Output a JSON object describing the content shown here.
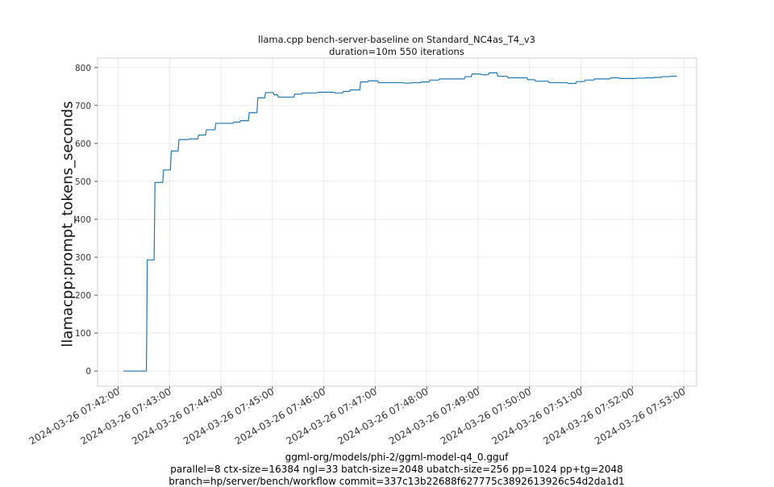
{
  "figure": {
    "title_line1": "llama.cpp bench-server-baseline on Standard_NC4as_T4_v3",
    "title_line2": "duration=10m 550 iterations",
    "footer_line1": "ggml-org/models/phi-2/ggml-model-q4_0.gguf",
    "footer_line2": "parallel=8 ctx-size=16384 ngl=33 batch-size=2048 ubatch-size=256 pp=1024 pp+tg=2048",
    "footer_line3": "branch=hp/server/bench/workflow commit=337c13b22688f627775c3892613926c54d2da1d1"
  },
  "chart_data": {
    "type": "line",
    "ylabel": "llamacpp:prompt_tokens_seconds",
    "xlabel": "",
    "grid": true,
    "legend": "none",
    "line_color": "#1f77b4",
    "ylim": [
      -40,
      825
    ],
    "yticks": [
      0,
      100,
      200,
      300,
      400,
      500,
      600,
      700,
      800
    ],
    "xlim": [
      "2024-03-26 07:41:36",
      "2024-03-26 07:53:15"
    ],
    "xticks": [
      "2024-03-26 07:42:00",
      "2024-03-26 07:43:00",
      "2024-03-26 07:44:00",
      "2024-03-26 07:45:00",
      "2024-03-26 07:46:00",
      "2024-03-26 07:47:00",
      "2024-03-26 07:48:00",
      "2024-03-26 07:49:00",
      "2024-03-26 07:50:00",
      "2024-03-26 07:51:00",
      "2024-03-26 07:52:00",
      "2024-03-26 07:53:00"
    ],
    "series": [
      {
        "x": [
          "2024-03-26 07:42:06",
          "2024-03-26 07:42:33",
          "2024-03-26 07:42:34",
          "2024-03-26 07:42:42",
          "2024-03-26 07:42:43",
          "2024-03-26 07:42:52",
          "2024-03-26 07:42:53",
          "2024-03-26 07:43:01",
          "2024-03-26 07:43:02",
          "2024-03-26 07:43:10",
          "2024-03-26 07:43:11",
          "2024-03-26 07:43:22",
          "2024-03-26 07:43:23",
          "2024-03-26 07:43:33",
          "2024-03-26 07:43:34",
          "2024-03-26 07:43:42",
          "2024-03-26 07:43:43",
          "2024-03-26 07:43:53",
          "2024-03-26 07:43:54",
          "2024-03-26 07:44:14",
          "2024-03-26 07:44:15",
          "2024-03-26 07:44:22",
          "2024-03-26 07:44:23",
          "2024-03-26 07:44:32",
          "2024-03-26 07:44:33",
          "2024-03-26 07:44:42",
          "2024-03-26 07:44:43",
          "2024-03-26 07:44:51",
          "2024-03-26 07:44:52",
          "2024-03-26 07:45:01",
          "2024-03-26 07:45:02",
          "2024-03-26 07:45:06",
          "2024-03-26 07:45:07",
          "2024-03-26 07:45:25",
          "2024-03-26 07:45:26",
          "2024-03-26 07:45:34",
          "2024-03-26 07:45:35",
          "2024-03-26 07:45:52",
          "2024-03-26 07:45:53",
          "2024-03-26 07:46:12",
          "2024-03-26 07:46:13",
          "2024-03-26 07:46:22",
          "2024-03-26 07:46:23",
          "2024-03-26 07:46:30",
          "2024-03-26 07:46:31",
          "2024-03-26 07:46:42",
          "2024-03-26 07:46:43",
          "2024-03-26 07:46:51",
          "2024-03-26 07:46:52",
          "2024-03-26 07:47:03",
          "2024-03-26 07:47:04",
          "2024-03-26 07:47:33",
          "2024-03-26 07:47:34",
          "2024-03-26 07:47:42",
          "2024-03-26 07:47:43",
          "2024-03-26 07:47:53",
          "2024-03-26 07:47:54",
          "2024-03-26 07:48:03",
          "2024-03-26 07:48:04",
          "2024-03-26 07:48:14",
          "2024-03-26 07:48:15",
          "2024-03-26 07:48:44",
          "2024-03-26 07:48:45",
          "2024-03-26 07:48:52",
          "2024-03-26 07:48:53",
          "2024-03-26 07:49:03",
          "2024-03-26 07:49:04",
          "2024-03-26 07:49:12",
          "2024-03-26 07:49:13",
          "2024-03-26 07:49:22",
          "2024-03-26 07:49:23",
          "2024-03-26 07:49:34",
          "2024-03-26 07:49:35",
          "2024-03-26 07:49:57",
          "2024-03-26 07:49:58",
          "2024-03-26 07:50:06",
          "2024-03-26 07:50:07",
          "2024-03-26 07:50:22",
          "2024-03-26 07:50:23",
          "2024-03-26 07:50:44",
          "2024-03-26 07:50:45",
          "2024-03-26 07:50:54",
          "2024-03-26 07:50:55",
          "2024-03-26 07:51:04",
          "2024-03-26 07:51:05",
          "2024-03-26 07:51:15",
          "2024-03-26 07:51:16",
          "2024-03-26 07:51:34",
          "2024-03-26 07:51:35",
          "2024-03-26 07:51:44",
          "2024-03-26 07:51:45",
          "2024-03-26 07:52:04",
          "2024-03-26 07:52:05",
          "2024-03-26 07:52:15",
          "2024-03-26 07:52:16",
          "2024-03-26 07:52:25",
          "2024-03-26 07:52:26",
          "2024-03-26 07:52:34",
          "2024-03-26 07:52:35",
          "2024-03-26 07:52:43",
          "2024-03-26 07:52:44",
          "2024-03-26 07:52:52"
        ],
        "values": [
          0,
          0,
          293,
          293,
          497,
          497,
          530,
          530,
          580,
          580,
          610,
          610,
          612,
          612,
          622,
          622,
          636,
          636,
          653,
          653,
          656,
          656,
          660,
          660,
          681,
          681,
          720,
          720,
          734,
          734,
          728,
          728,
          722,
          722,
          730,
          730,
          733,
          733,
          735,
          735,
          733,
          733,
          737,
          737,
          741,
          741,
          762,
          762,
          765,
          765,
          760,
          760,
          759,
          759,
          760,
          760,
          762,
          762,
          767,
          767,
          770,
          770,
          776,
          776,
          783,
          783,
          781,
          781,
          786,
          786,
          777,
          777,
          773,
          773,
          768,
          768,
          764,
          764,
          760,
          760,
          758,
          758,
          763,
          763,
          767,
          767,
          770,
          770,
          773,
          773,
          771,
          771,
          772,
          772,
          773,
          773,
          774,
          774,
          776,
          776,
          777,
          777
        ]
      }
    ]
  }
}
